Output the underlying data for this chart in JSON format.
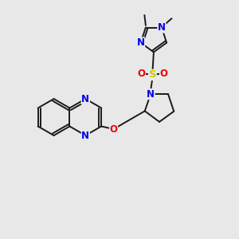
{
  "background_color": "#e8e8e8",
  "figsize": [
    3.0,
    3.0
  ],
  "dpi": 100,
  "atom_colors": {
    "C": "#000000",
    "N": "#0000ee",
    "O": "#ee0000",
    "S": "#cccc00"
  },
  "bond_color": "#1a1a1a",
  "bond_width": 1.4,
  "font_size_atom": 8.5
}
